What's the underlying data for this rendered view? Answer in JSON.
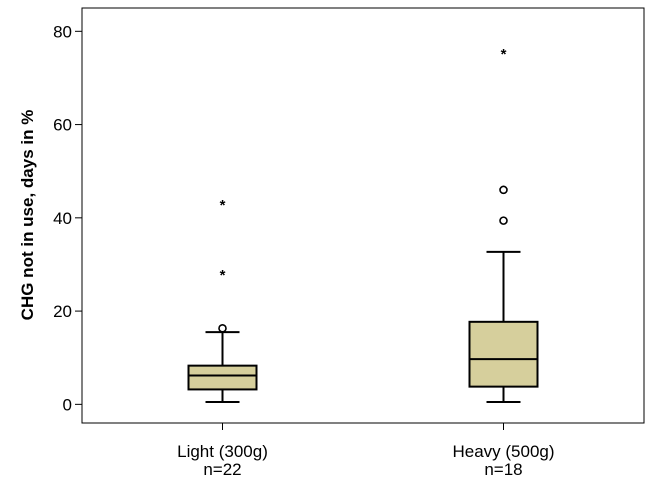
{
  "chart_data": {
    "type": "boxplot",
    "ylabel": "CHG not in use, days in %",
    "ylim": [
      -4,
      85
    ],
    "yticks": [
      0,
      20,
      40,
      60,
      80
    ],
    "categories": [
      {
        "label": "Light (300g)",
        "n_label": "n=22"
      },
      {
        "label": "Heavy (500g)",
        "n_label": "n=18"
      }
    ],
    "series": [
      {
        "min": 0.5,
        "q1": 3.2,
        "median": 6.2,
        "q3": 8.3,
        "max": 15.5,
        "outliers": [
          16.3
        ],
        "extremes": [
          28,
          43
        ]
      },
      {
        "min": 0.5,
        "q1": 3.8,
        "median": 9.7,
        "q3": 17.7,
        "max": 32.7,
        "outliers": [
          39.4,
          46
        ],
        "extremes": [
          75.3
        ]
      }
    ],
    "colors": {
      "box_fill": "#d6cf9c",
      "stroke": "#000000"
    }
  }
}
